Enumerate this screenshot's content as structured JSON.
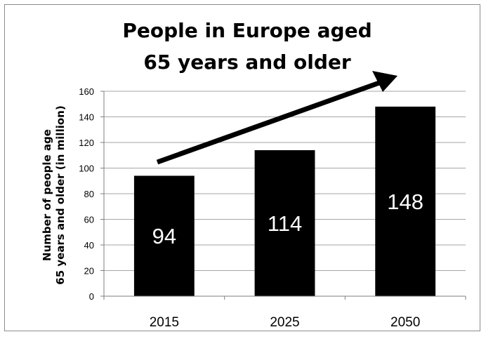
{
  "chart_data": {
    "type": "bar",
    "title": "People in Europe aged 65 years and older",
    "title_lines": [
      "People in Europe aged",
      "65 years and older"
    ],
    "xlabel": "",
    "ylabel": "Number of people age 65 years and older (in million)",
    "ylabel_lines": [
      "Number of people age",
      "65 years and older (in million)"
    ],
    "categories": [
      "2015",
      "2025",
      "2050"
    ],
    "values": [
      94,
      114,
      148
    ],
    "data_labels": [
      "94",
      "114",
      "148"
    ],
    "ylim": [
      0,
      160
    ],
    "yticks": [
      0,
      20,
      40,
      60,
      80,
      100,
      120,
      140,
      160
    ],
    "ytick_labels": [
      "0",
      "20",
      "40",
      "60",
      "80",
      "100",
      "120",
      "140",
      "160"
    ],
    "grid": true,
    "legend": "none",
    "bar_color": "#000000",
    "label_color": "#ffffff",
    "grid_color": "#a6a6a6",
    "annotation": "trend-arrow"
  }
}
